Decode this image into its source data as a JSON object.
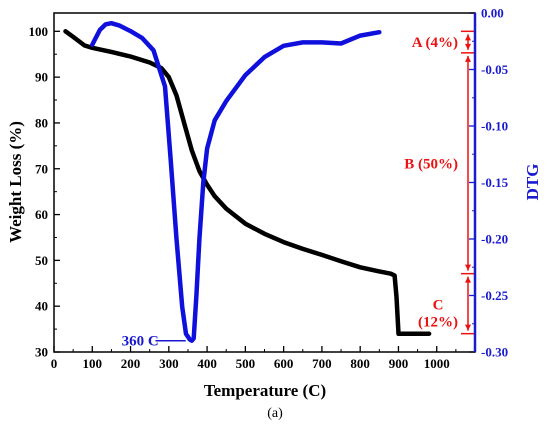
{
  "chart_data": {
    "type": "line",
    "caption": "(a)",
    "xlabel": "Temperature (C)",
    "ylabel_left": "Weight Loss (%)",
    "ylabel_right": "DTG",
    "xlim": [
      0,
      1100
    ],
    "ylim_left": [
      30,
      104
    ],
    "ylim_right": [
      -0.3,
      0.0
    ],
    "x_ticks": [
      0,
      100,
      200,
      300,
      400,
      500,
      600,
      700,
      800,
      900,
      1000
    ],
    "y_left_ticks": [
      30,
      40,
      50,
      60,
      70,
      80,
      90,
      100
    ],
    "y_right_ticks": [
      0.0,
      -0.05,
      -0.1,
      -0.15,
      -0.2,
      -0.25,
      -0.3
    ],
    "y_right_tick_labels": [
      "0.00",
      "-0.05",
      "-0.10",
      "-0.15",
      "-0.20",
      "-0.25",
      "-0.30"
    ],
    "grid": false,
    "colors": {
      "weight": "#000000",
      "dtg": "#1010dd",
      "annotation": "#ee1111",
      "right_axis": "#1a1ad0"
    },
    "series": [
      {
        "axis": "left",
        "x": [
          30,
          50,
          80,
          100,
          150,
          200,
          250,
          280,
          300,
          320,
          340,
          360,
          380,
          400,
          420,
          450,
          500,
          550,
          600,
          650,
          700,
          750,
          800,
          850,
          880,
          890,
          895,
          900,
          940,
          980
        ],
        "y": [
          100,
          98.8,
          96.9,
          96.4,
          95.5,
          94.5,
          93.2,
          92,
          90,
          86,
          80,
          74,
          69.5,
          66.5,
          64,
          61.3,
          58,
          55.8,
          54,
          52.5,
          51.2,
          49.8,
          48.5,
          47.6,
          47.1,
          46.7,
          42,
          34,
          34,
          34
        ]
      },
      {
        "axis": "right",
        "x": [
          100,
          120,
          135,
          150,
          170,
          200,
          230,
          260,
          290,
          305,
          320,
          335,
          345,
          355,
          360,
          365,
          372,
          380,
          390,
          400,
          420,
          450,
          500,
          550,
          600,
          650,
          700,
          750,
          800,
          850
        ],
        "y": [
          -0.028,
          -0.015,
          -0.01,
          -0.009,
          -0.011,
          -0.016,
          -0.022,
          -0.033,
          -0.065,
          -0.13,
          -0.2,
          -0.26,
          -0.284,
          -0.289,
          -0.29,
          -0.288,
          -0.25,
          -0.2,
          -0.15,
          -0.12,
          -0.095,
          -0.078,
          -0.055,
          -0.039,
          -0.029,
          -0.026,
          -0.026,
          -0.027,
          -0.02,
          -0.017
        ]
      }
    ],
    "annotations": {
      "peak": "360 C",
      "stage_a": "A (4%)",
      "stage_b": "B (50%)",
      "stage_c_1": "C",
      "stage_c_2": "(12%)"
    },
    "stage_bounds": [
      100,
      95.3,
      47.1,
      34
    ]
  }
}
